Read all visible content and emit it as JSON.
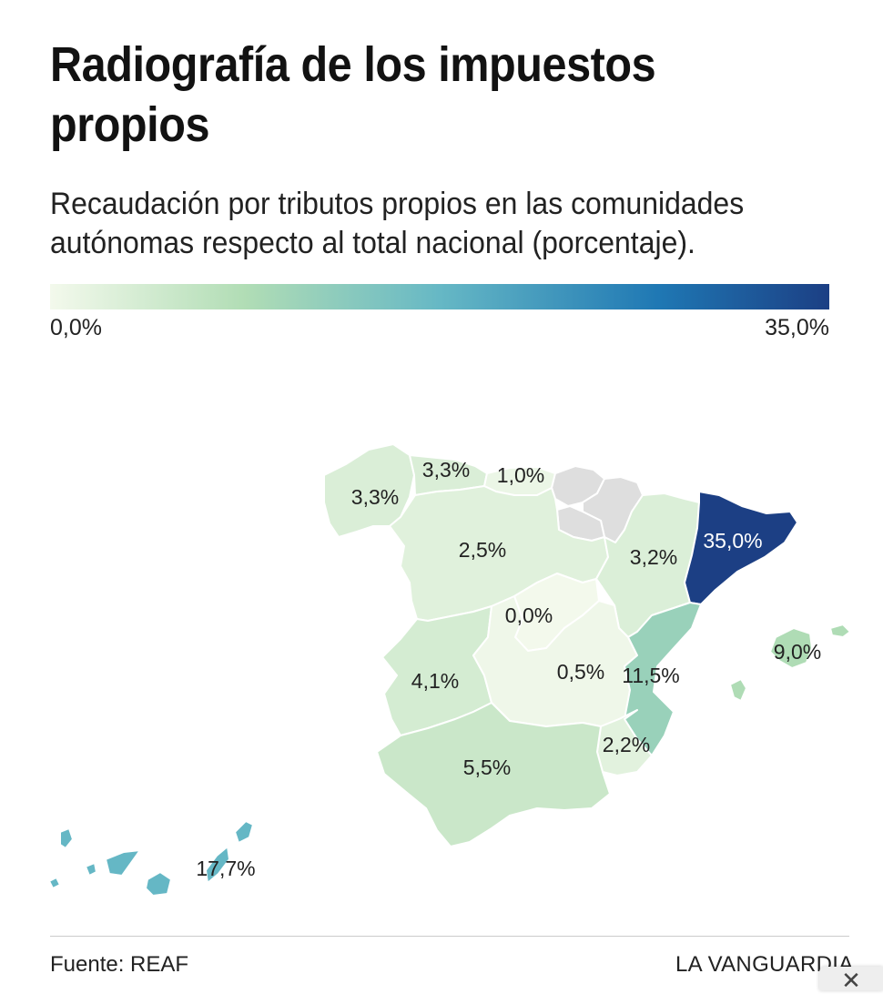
{
  "header": {
    "title": "Radiografía de los impuestos propios",
    "subtitle": "Recaudación por tributos propios en las comunidades autónomas respecto al total nacional (porcentaje)."
  },
  "legend": {
    "min_label": "0,0%",
    "max_label": "35,0%",
    "min_value": 0.0,
    "max_value": 35.0,
    "gradient_colors": [
      "#f3f9ec",
      "#b1ddb5",
      "#66b8c5",
      "#1f78b4",
      "#1c3f84"
    ]
  },
  "map_data": {
    "unit": "%",
    "no_data_color": "#dedede",
    "regions": [
      {
        "name": "Galicia",
        "value": 3.3,
        "label": "3,3%"
      },
      {
        "name": "Asturias",
        "value": 3.3,
        "label": "3,3%"
      },
      {
        "name": "Cantabria",
        "value": 1.0,
        "label": "1,0%"
      },
      {
        "name": "País Vasco",
        "value": null,
        "label": ""
      },
      {
        "name": "Navarra",
        "value": null,
        "label": ""
      },
      {
        "name": "Castilla y León",
        "value": 2.5,
        "label": "2,5%"
      },
      {
        "name": "La Rioja",
        "value": null,
        "label": ""
      },
      {
        "name": "Aragón",
        "value": 3.2,
        "label": "3,2%"
      },
      {
        "name": "Cataluña",
        "value": 35.0,
        "label": "35,0%"
      },
      {
        "name": "Madrid",
        "value": 0.0,
        "label": "0,0%"
      },
      {
        "name": "Extremadura",
        "value": 4.1,
        "label": "4,1%"
      },
      {
        "name": "Castilla-La Mancha",
        "value": 0.5,
        "label": "0,5%"
      },
      {
        "name": "Comunidad Valenciana",
        "value": 11.5,
        "label": "11,5%"
      },
      {
        "name": "Islas Baleares",
        "value": 9.0,
        "label": "9,0%"
      },
      {
        "name": "Región de Murcia",
        "value": 2.2,
        "label": "2,2%"
      },
      {
        "name": "Andalucía",
        "value": 5.5,
        "label": "5,5%"
      },
      {
        "name": "Canarias",
        "value": 17.7,
        "label": "17,7%"
      }
    ]
  },
  "footer": {
    "source": "Fuente: REAF",
    "brand": "LA VANGUARDIA",
    "close_icon": "close-icon"
  }
}
